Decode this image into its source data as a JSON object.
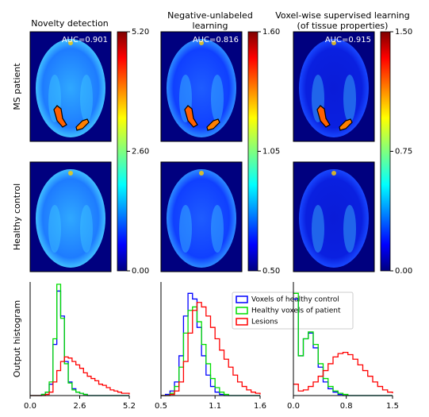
{
  "columns": [
    {
      "title": [
        "Novelty detection"
      ],
      "auc": "AUC=0.901",
      "cblim": [
        0,
        5.2
      ],
      "cbticks": [
        {
          "value": 0,
          "label": "0.00"
        },
        {
          "value": 2.6,
          "label": "2.60"
        },
        {
          "value": 5.2,
          "label": "5.20"
        }
      ]
    },
    {
      "title": [
        "Negative-unlabeled",
        "learning"
      ],
      "auc": "AUC=0.816",
      "cblim": [
        0.5,
        1.6
      ],
      "cbticks": [
        {
          "value": 0.5,
          "label": "0.50"
        },
        {
          "value": 1.05,
          "label": "1.05"
        },
        {
          "value": 1.6,
          "label": "1.60"
        }
      ]
    },
    {
      "title": [
        "Voxel-wise supervised learning",
        "(of tissue properties)"
      ],
      "auc": "AUC=0.915",
      "cblim": [
        0,
        1.5
      ],
      "cbticks": [
        {
          "value": 0,
          "label": "0.00"
        },
        {
          "value": 0.75,
          "label": "0.75"
        },
        {
          "value": 1.5,
          "label": "1.50"
        }
      ]
    }
  ],
  "row_labels": [
    "MS patient",
    "Healthy control"
  ],
  "chart_data": [
    {
      "type": "line",
      "ylabel": "Output histogram",
      "x": [
        0,
        0.2,
        0.4,
        0.6,
        0.8,
        1.0,
        1.2,
        1.4,
        1.6,
        1.8,
        2.0,
        2.2,
        2.4,
        2.6,
        2.8,
        3.0,
        3.2,
        3.4,
        3.6,
        3.8,
        4.0,
        4.2,
        4.4,
        4.6,
        4.8,
        5.0,
        5.2
      ],
      "xlim": [
        0,
        5.2
      ],
      "xticks": [
        {
          "value": 0,
          "label": "0.0"
        },
        2.6,
        5.2
      ],
      "ylim": [
        0,
        1
      ],
      "series": [
        {
          "name": "Voxels of healthy control",
          "color": "#0000ff",
          "values": [
            0,
            0,
            0,
            0.01,
            0.03,
            0.1,
            0.45,
            0.92,
            0.7,
            0.3,
            0.12,
            0.06,
            0.03,
            0.02,
            0.01,
            0,
            0,
            0,
            0,
            0,
            0,
            0,
            0,
            0,
            0,
            0,
            0
          ]
        },
        {
          "name": "Healthy voxels of patient",
          "color": "#00dd00",
          "values": [
            0,
            0,
            0,
            0.01,
            0.03,
            0.12,
            0.5,
            0.98,
            0.68,
            0.28,
            0.11,
            0.05,
            0.03,
            0.02,
            0.01,
            0,
            0,
            0,
            0,
            0,
            0,
            0,
            0,
            0,
            0,
            0,
            0
          ]
        },
        {
          "name": "Lesions",
          "color": "#ff0000",
          "values": [
            0,
            0,
            0,
            0,
            0.01,
            0.03,
            0.12,
            0.22,
            0.3,
            0.34,
            0.33,
            0.3,
            0.27,
            0.24,
            0.2,
            0.17,
            0.15,
            0.13,
            0.1,
            0.09,
            0.07,
            0.05,
            0.04,
            0.03,
            0.02,
            0.02,
            0.01
          ]
        }
      ]
    },
    {
      "type": "line",
      "legend": "upper right",
      "x": [
        0.5,
        0.55,
        0.6,
        0.65,
        0.7,
        0.75,
        0.8,
        0.85,
        0.9,
        0.95,
        1.0,
        1.05,
        1.1,
        1.15,
        1.2,
        1.25,
        1.3,
        1.35,
        1.4,
        1.45,
        1.5,
        1.55,
        1.6
      ],
      "xlim": [
        0.5,
        1.6
      ],
      "xticks": [
        0.5,
        1.1,
        1.6
      ],
      "ylim": [
        0,
        1
      ],
      "series": [
        {
          "name": "Voxels of healthy control",
          "color": "#0000ff",
          "values": [
            0,
            0.01,
            0.04,
            0.12,
            0.35,
            0.7,
            0.9,
            0.85,
            0.6,
            0.35,
            0.18,
            0.08,
            0.03,
            0.01,
            0,
            0,
            0,
            0,
            0,
            0,
            0,
            0,
            0
          ]
        },
        {
          "name": "Healthy voxels of patient",
          "color": "#00dd00",
          "values": [
            0,
            0,
            0.02,
            0.08,
            0.25,
            0.55,
            0.75,
            0.78,
            0.65,
            0.45,
            0.28,
            0.15,
            0.07,
            0.03,
            0.01,
            0,
            0,
            0,
            0,
            0,
            0,
            0,
            0
          ]
        },
        {
          "name": "Lesions",
          "color": "#ff0000",
          "values": [
            0,
            0,
            0.01,
            0.04,
            0.12,
            0.3,
            0.55,
            0.75,
            0.82,
            0.78,
            0.7,
            0.6,
            0.5,
            0.4,
            0.32,
            0.25,
            0.18,
            0.12,
            0.08,
            0.05,
            0.03,
            0.02,
            0.01
          ]
        }
      ]
    },
    {
      "type": "line",
      "x": [
        0,
        0.075,
        0.15,
        0.225,
        0.3,
        0.375,
        0.45,
        0.525,
        0.6,
        0.675,
        0.75,
        0.825,
        0.9,
        0.975,
        1.05,
        1.125,
        1.2,
        1.275,
        1.35,
        1.425,
        1.5
      ],
      "xlim": [
        0,
        1.5
      ],
      "xticks": [
        {
          "value": 0,
          "label": "0.0"
        },
        0.8,
        1.5
      ],
      "ylim": [
        0,
        1
      ],
      "series": [
        {
          "name": "Voxels of healthy control",
          "color": "#0000ff",
          "values": [
            0.85,
            0.35,
            0.5,
            0.55,
            0.42,
            0.25,
            0.12,
            0.06,
            0.03,
            0.01,
            0,
            0,
            0,
            0,
            0,
            0,
            0,
            0,
            0,
            0,
            0
          ]
        },
        {
          "name": "Healthy voxels of patient",
          "color": "#00dd00",
          "values": [
            0.9,
            0.35,
            0.5,
            0.56,
            0.45,
            0.28,
            0.15,
            0.08,
            0.04,
            0.02,
            0.01,
            0,
            0,
            0,
            0,
            0,
            0,
            0,
            0,
            0,
            0
          ]
        },
        {
          "name": "Lesions",
          "color": "#ff0000",
          "values": [
            0.1,
            0.04,
            0.05,
            0.08,
            0.12,
            0.17,
            0.22,
            0.28,
            0.34,
            0.37,
            0.38,
            0.36,
            0.32,
            0.27,
            0.22,
            0.17,
            0.12,
            0.08,
            0.05,
            0.03,
            0.02
          ]
        }
      ]
    }
  ]
}
